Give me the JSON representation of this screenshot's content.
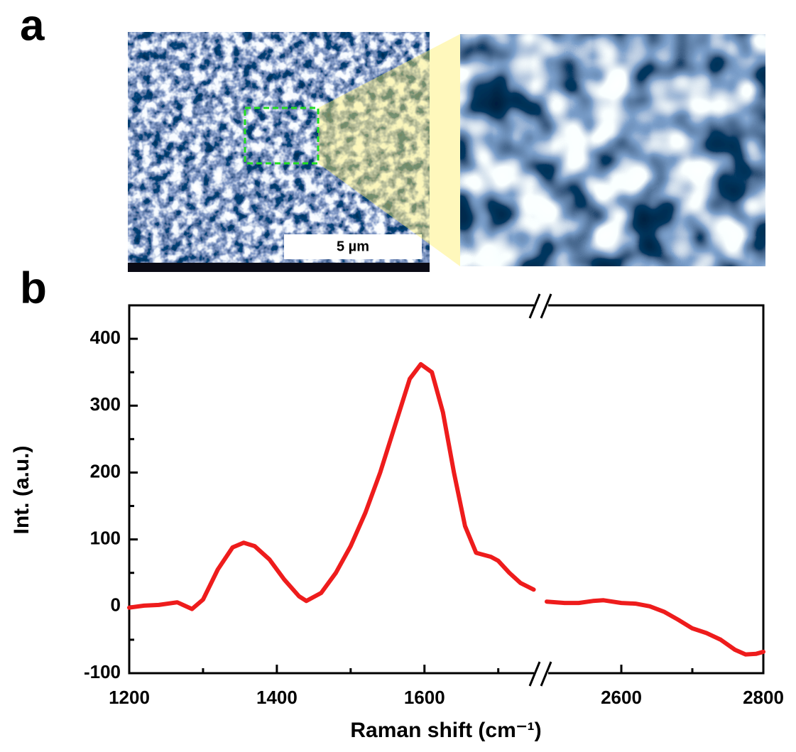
{
  "panel_labels": [
    "a",
    "b"
  ],
  "scale_bar": "5 µm",
  "chart_data": {
    "type": "line",
    "xlabel": "Raman shift (cm⁻¹)",
    "ylabel": "Int. (a.u.)",
    "ylim": [
      -100,
      450
    ],
    "yticks": [
      -100,
      0,
      100,
      200,
      300,
      400
    ],
    "yminorticks": [
      -50,
      50,
      150,
      250,
      350
    ],
    "x_axes": [
      {
        "xlim": [
          1200,
          1758
        ],
        "xticks": [
          1200,
          1400,
          1600
        ],
        "xminorticks": [
          1300,
          1500,
          1700
        ]
      },
      {
        "xlim": [
          2487,
          2800
        ],
        "xticks": [
          2600,
          2800
        ],
        "xminorticks": [
          2700
        ]
      }
    ],
    "series": [
      {
        "color": "#ee1c1c",
        "x_axis": 0,
        "x": [
          1200,
          1220,
          1240,
          1265,
          1285,
          1300,
          1320,
          1340,
          1355,
          1370,
          1390,
          1410,
          1430,
          1440,
          1460,
          1480,
          1500,
          1520,
          1540,
          1560,
          1580,
          1595,
          1610,
          1625,
          1640,
          1655,
          1670,
          1690,
          1700,
          1715,
          1730,
          1748
        ],
        "values": [
          -2,
          1,
          2,
          6,
          -4,
          10,
          55,
          88,
          95,
          90,
          70,
          40,
          15,
          8,
          20,
          50,
          90,
          140,
          200,
          270,
          340,
          362,
          350,
          290,
          200,
          120,
          80,
          74,
          68,
          50,
          35,
          25
        ]
      },
      {
        "color": "#ee1c1c",
        "x_axis": 1,
        "x": [
          2495,
          2520,
          2540,
          2560,
          2575,
          2600,
          2620,
          2640,
          2660,
          2680,
          2700,
          2720,
          2740,
          2760,
          2775,
          2790,
          2800
        ],
        "values": [
          7,
          5,
          5,
          8,
          9,
          5,
          4,
          0,
          -8,
          -20,
          -33,
          -40,
          -50,
          -65,
          -72,
          -71,
          -68
        ]
      }
    ]
  }
}
